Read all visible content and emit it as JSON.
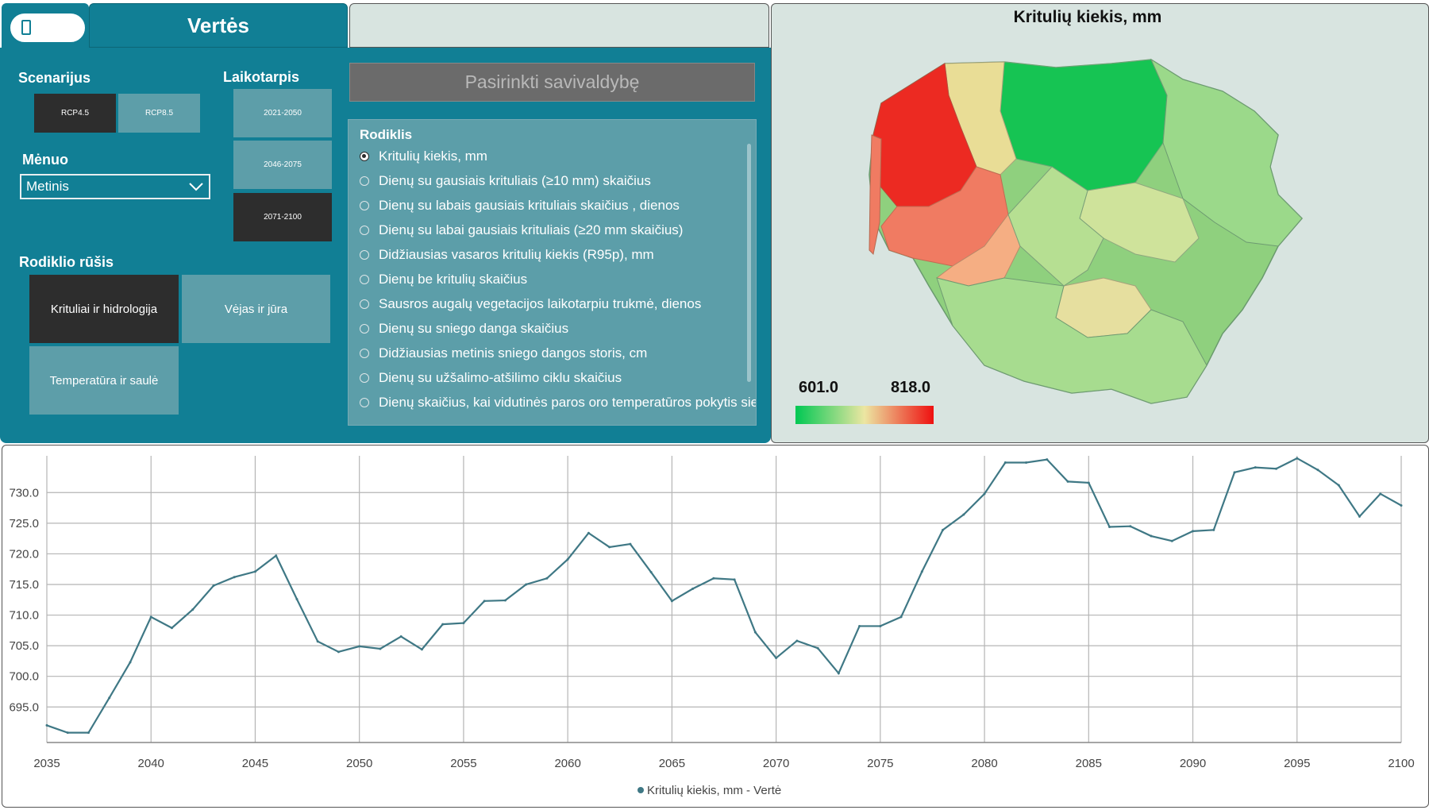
{
  "header": {
    "icon": "phone-icon",
    "title": "Vertės"
  },
  "controls": {
    "scenario": {
      "label": "Scenarijus",
      "options": [
        "RCP4.5",
        "RCP8.5"
      ],
      "selected": "RCP4.5"
    },
    "period": {
      "label": "Laikotarpis",
      "options": [
        "2021-2050",
        "2046-2075",
        "2071-2100"
      ],
      "selected": "2071-2100"
    },
    "month": {
      "label": "Mėnuo",
      "value": "Metinis"
    },
    "indicator_type": {
      "label": "Rodiklio rūšis",
      "options": [
        "Krituliai ir hidrologija",
        "Vėjas ir jūra",
        "Temperatūra ir saulė"
      ],
      "selected": "Krituliai ir hidrologija"
    },
    "municipality_button": "Pasirinkti savivaldybę"
  },
  "indicator": {
    "title": "Rodiklis",
    "items": [
      "Kritulių kiekis, mm",
      "Dienų su gausiais krituliais (≥10 mm) skaičius",
      "Dienų su labais gausiais krituliais skaičius , dienos",
      "Dienų su labai gausiais krituliais (≥20 mm skaičius)",
      "Didžiausias vasaros kritulių kiekis (R95p), mm",
      "Dienų be kritulių skaičius",
      "Sausros augalų vegetacijos laikotarpiu trukmė, dienos",
      "Dienų su sniego danga skaičius",
      "Didžiausias metinis sniego dangos storis, cm",
      "Dienų su užšalimo-atšilimo ciklu skaičius",
      "Dienų skaičius, kai vidutinės paros oro temperatūros pokytis sie..."
    ],
    "selected_index": 0
  },
  "map": {
    "title": "Kritulių kiekis, mm",
    "legend_min": "601.0",
    "legend_max": "818.0",
    "colors": {
      "low": "#00c853",
      "mid": "#ece6a2",
      "high": "#ee1010"
    }
  },
  "chart_data": {
    "type": "line",
    "x": [
      2035,
      2036,
      2037,
      2038,
      2039,
      2040,
      2041,
      2042,
      2043,
      2044,
      2045,
      2046,
      2047,
      2048,
      2049,
      2050,
      2051,
      2052,
      2053,
      2054,
      2055,
      2056,
      2057,
      2058,
      2059,
      2060,
      2061,
      2062,
      2063,
      2064,
      2065,
      2066,
      2067,
      2068,
      2069,
      2070,
      2071,
      2072,
      2073,
      2074,
      2075,
      2076,
      2077,
      2078,
      2079,
      2080,
      2081,
      2082,
      2083,
      2084,
      2085,
      2086,
      2087,
      2088,
      2089,
      2090,
      2091,
      2092,
      2093,
      2094,
      2095,
      2096,
      2097,
      2098,
      2099,
      2100
    ],
    "series": [
      {
        "name": "Kritulių kiekis, mm - Vertė",
        "values": [
          692.0,
          690.8,
          690.8,
          696.5,
          702.3,
          709.7,
          707.9,
          710.9,
          714.8,
          716.2,
          717.1,
          719.7,
          712.6,
          705.7,
          704.0,
          704.9,
          704.5,
          706.5,
          704.4,
          708.5,
          708.7,
          712.3,
          712.4,
          715.0,
          716.0,
          719.1,
          723.4,
          721.1,
          721.6,
          717.0,
          712.3,
          714.3,
          716.0,
          715.8,
          707.2,
          703.0,
          705.8,
          704.6,
          700.5,
          708.2,
          708.2,
          709.7,
          717.1,
          723.9,
          726.4,
          729.8,
          734.9,
          734.9,
          735.4,
          731.8,
          731.6,
          724.4,
          724.5,
          722.9,
          722.1,
          723.7,
          723.9,
          733.3,
          734.1,
          733.9,
          735.6,
          733.7,
          731.2,
          726.1,
          729.8,
          727.9
        ]
      }
    ],
    "x_ticks": [
      "2035",
      "2040",
      "2045",
      "2050",
      "2055",
      "2060",
      "2065",
      "2070",
      "2075",
      "2080",
      "2085",
      "2090",
      "2095",
      "2100"
    ],
    "y_ticks": [
      "695.0",
      "700.0",
      "705.0",
      "710.0",
      "715.0",
      "720.0",
      "725.0",
      "730.0"
    ],
    "xlim": [
      2035,
      2100
    ],
    "ylim": [
      689.2,
      736.0
    ],
    "grid": true,
    "legend": "Kritulių kiekis, mm - Vertė",
    "line_color": "#3f7885"
  }
}
